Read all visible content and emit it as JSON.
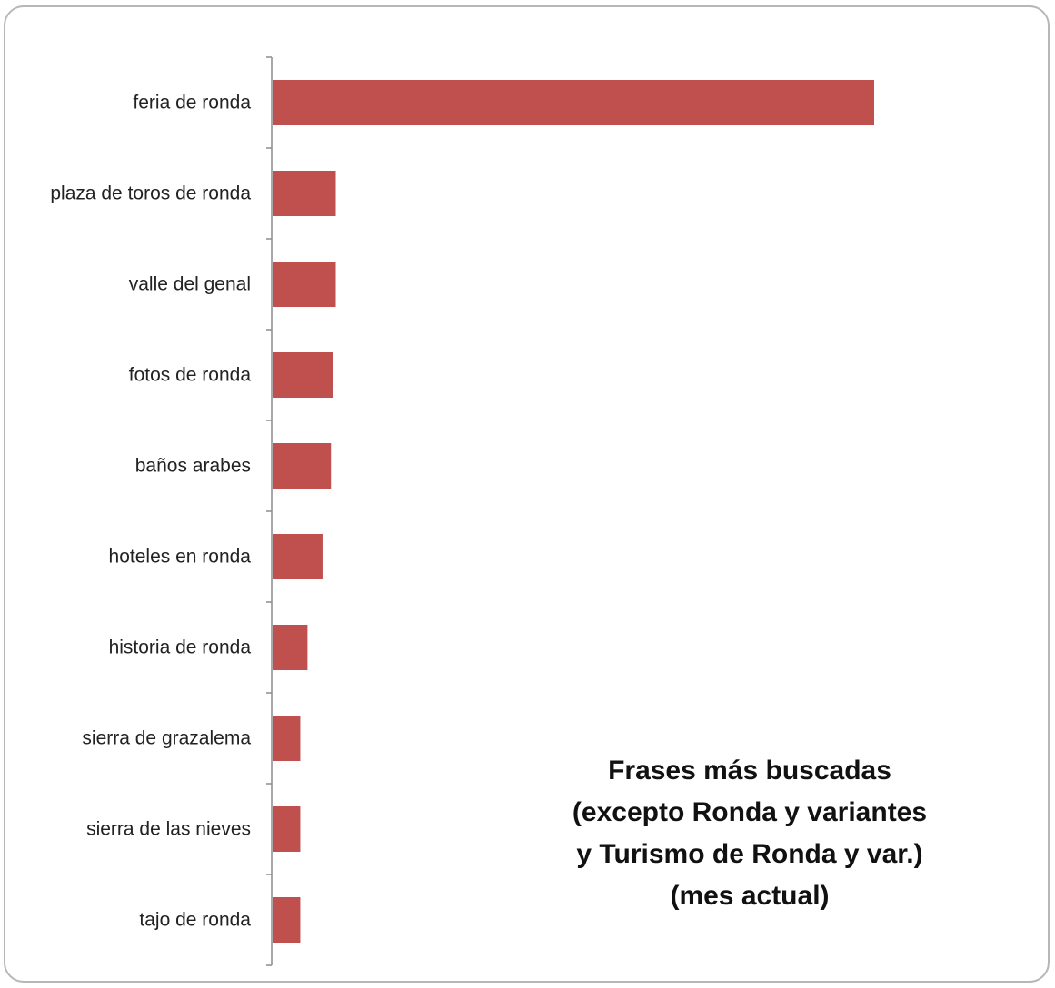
{
  "chart_data": {
    "type": "bar",
    "orientation": "horizontal",
    "title_lines": [
      "Frases más buscadas",
      "(excepto Ronda y variantes",
      "y Turismo de Ronda y var.)",
      "(mes actual)"
    ],
    "categories": [
      "feria de ronda",
      "plaza de toros de ronda",
      "valle del genal",
      "fotos de ronda",
      "baños arabes",
      "hoteles en ronda",
      "historia de ronda",
      "sierra de grazalema",
      "sierra de las nieves",
      "tajo de ronda"
    ],
    "values": [
      100,
      10.5,
      10.5,
      10,
      9.7,
      8.3,
      5.8,
      4.6,
      4.6,
      4.6
    ],
    "value_axis": {
      "visible": false,
      "range": [
        0,
        100
      ]
    },
    "grid": false,
    "legend": "none",
    "bar_color": "#c0504d"
  }
}
